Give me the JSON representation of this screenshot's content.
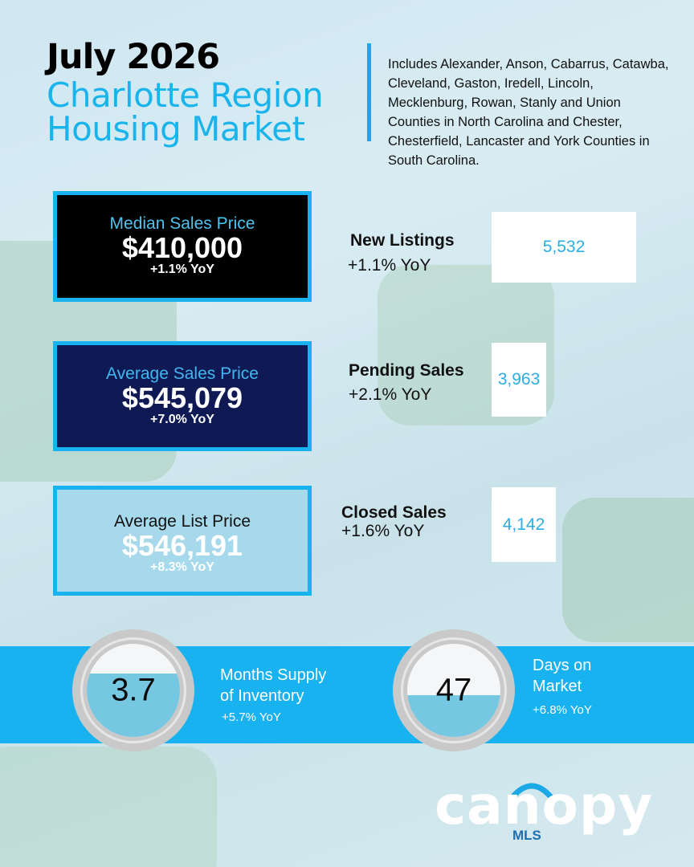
{
  "header": {
    "title_year": "July 2026",
    "title_region": "Charlotte Region Housing Market",
    "coverage": "Includes Alexander, Anson, Cabarrus, Catawba, Cleveland, Gaston, Iredell, Lincoln, Mecklenburg, Rowan, Stanly and Union Counties in North Carolina and Chester, Chesterfield, Lancaster and York Counties in South Carolina."
  },
  "prices": {
    "median": {
      "label": "Median Sales Price",
      "value": "$410,000",
      "yoy": "+1.1% YoY"
    },
    "average": {
      "label": "Average Sales Price",
      "value": "$545,079",
      "yoy": "+7.0% YoY"
    },
    "list": {
      "label": "Average List Price",
      "value": "$546,191",
      "yoy": "+8.3% YoY"
    }
  },
  "metrics": {
    "new_listings": {
      "label": "New Listings",
      "yoy": "+1.1% YoY",
      "value": "5,532"
    },
    "pending_sales": {
      "label": "Pending Sales",
      "yoy": "+2.1% YoY",
      "value": "3,963"
    },
    "closed_sales": {
      "label": "Closed Sales",
      "yoy": "+1.6% YoY",
      "value": "4,142"
    }
  },
  "inventory": {
    "months_supply": {
      "value": "3.7",
      "label_line1": "Months Supply",
      "label_line2": "of Inventory",
      "yoy": "+5.7% YoY",
      "fill_fraction": 0.68
    },
    "days_on_market": {
      "value": "47",
      "label_line1": "Days on",
      "label_line2": "Market",
      "yoy": "+6.8% YoY",
      "fill_fraction": 0.45
    }
  },
  "logo": {
    "word": "canopy",
    "sub": "MLS"
  },
  "colors": {
    "accent": "#17b2ef",
    "navy": "#0f1a55",
    "black": "#000000",
    "gauge_fill": "#76c7e1"
  }
}
